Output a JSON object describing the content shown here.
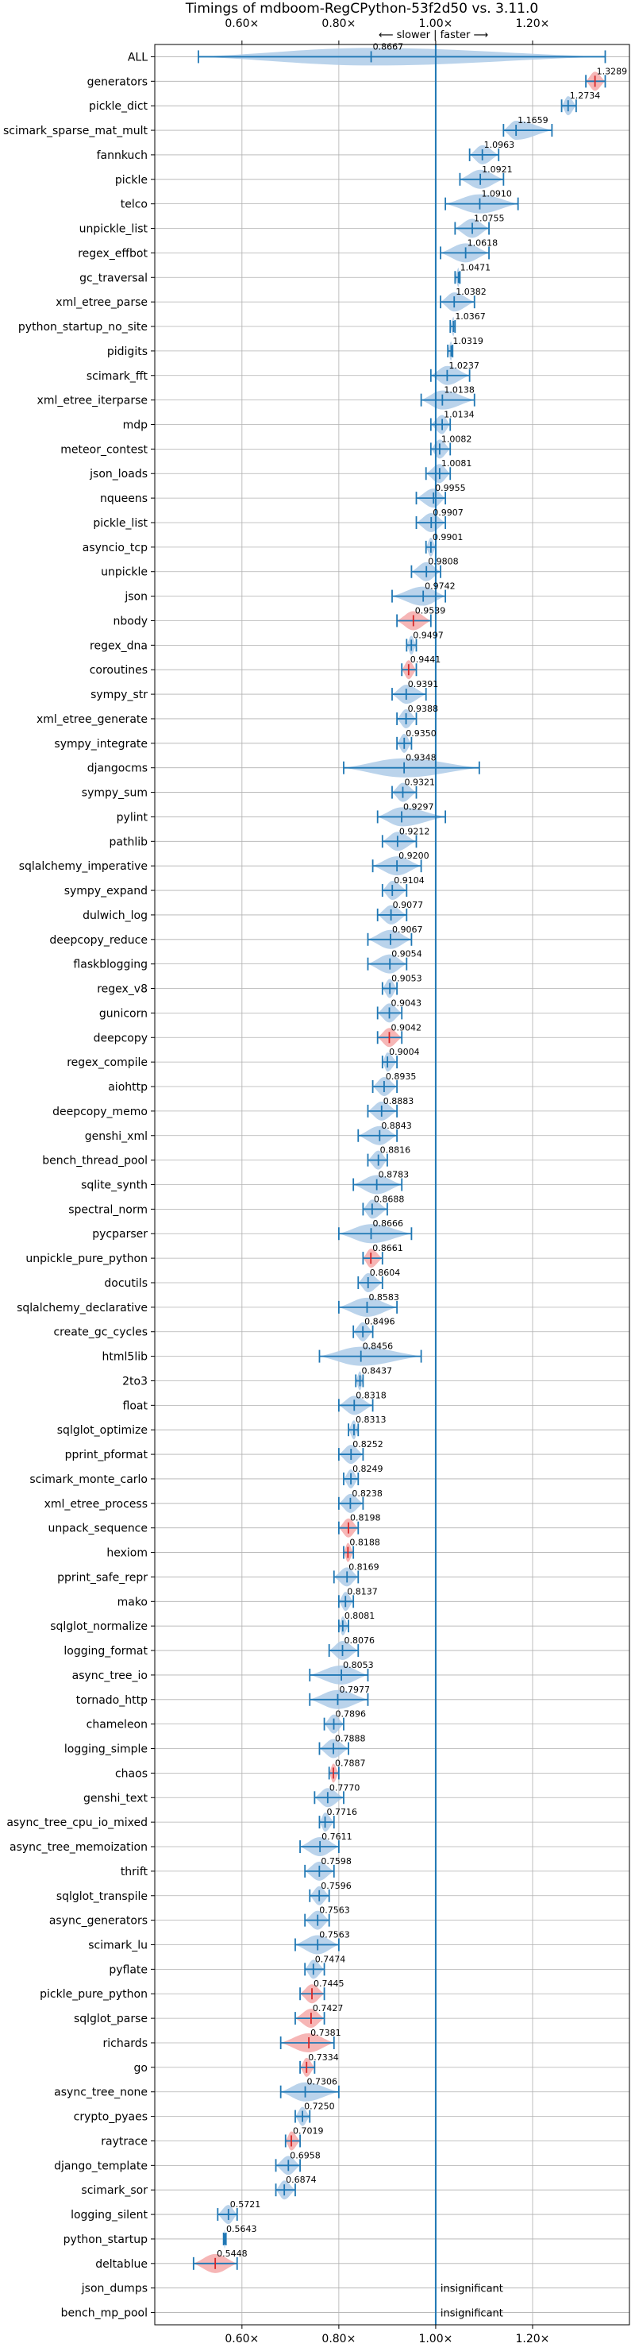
{
  "chart_data": {
    "type": "violin",
    "title": "Timings of mdboom-RegCPython-53f2d50 vs. 3.11.0",
    "direction_note": "⟵ slower | faster ⟶",
    "x_ticks": [
      {
        "value": 0.6,
        "label": "0.60×"
      },
      {
        "value": 0.8,
        "label": "0.80×"
      },
      {
        "value": 1.0,
        "label": "1.00×"
      },
      {
        "value": 1.2,
        "label": "1.20×"
      }
    ],
    "xlim": [
      0.42,
      1.4
    ],
    "reference_line": 1.0,
    "colors": {
      "faster": "#1f77b4",
      "violin_blue": "#aecbe8",
      "violin_red": "#f4a9a9",
      "slower_marker": "#d62728",
      "grid": "#b0b0b0"
    },
    "benchmarks": [
      {
        "name": "ALL",
        "value": 0.8667,
        "label": "0.8667",
        "lo": 0.51,
        "hi": 1.35,
        "color": "blue",
        "wide": true
      },
      {
        "name": "generators",
        "value": 1.3289,
        "label": "1.3289",
        "lo": 1.31,
        "hi": 1.35,
        "color": "red"
      },
      {
        "name": "pickle_dict",
        "value": 1.2734,
        "label": "1.2734",
        "lo": 1.26,
        "hi": 1.29,
        "color": "blue"
      },
      {
        "name": "scimark_sparse_mat_mult",
        "value": 1.1659,
        "label": "1.1659",
        "lo": 1.14,
        "hi": 1.24,
        "color": "blue"
      },
      {
        "name": "fannkuch",
        "value": 1.0963,
        "label": "1.0963",
        "lo": 1.07,
        "hi": 1.13,
        "color": "blue"
      },
      {
        "name": "pickle",
        "value": 1.0921,
        "label": "1.0921",
        "lo": 1.05,
        "hi": 1.14,
        "color": "blue"
      },
      {
        "name": "telco",
        "value": 1.091,
        "label": "1.0910",
        "lo": 1.02,
        "hi": 1.17,
        "color": "blue"
      },
      {
        "name": "unpickle_list",
        "value": 1.0755,
        "label": "1.0755",
        "lo": 1.04,
        "hi": 1.11,
        "color": "blue"
      },
      {
        "name": "regex_effbot",
        "value": 1.0618,
        "label": "1.0618",
        "lo": 1.01,
        "hi": 1.11,
        "color": "blue"
      },
      {
        "name": "gc_traversal",
        "value": 1.0471,
        "label": "1.0471",
        "lo": 1.04,
        "hi": 1.05,
        "color": "blue"
      },
      {
        "name": "xml_etree_parse",
        "value": 1.0382,
        "label": "1.0382",
        "lo": 1.01,
        "hi": 1.08,
        "color": "blue"
      },
      {
        "name": "python_startup_no_site",
        "value": 1.0367,
        "label": "1.0367",
        "lo": 1.03,
        "hi": 1.04,
        "color": "blue"
      },
      {
        "name": "pidigits",
        "value": 1.0319,
        "label": "1.0319",
        "lo": 1.025,
        "hi": 1.035,
        "color": "blue"
      },
      {
        "name": "scimark_fft",
        "value": 1.0237,
        "label": "1.0237",
        "lo": 0.99,
        "hi": 1.07,
        "color": "blue"
      },
      {
        "name": "xml_etree_iterparse",
        "value": 1.0138,
        "label": "1.0138",
        "lo": 0.97,
        "hi": 1.08,
        "color": "blue"
      },
      {
        "name": "mdp",
        "value": 1.0134,
        "label": "1.0134",
        "lo": 0.99,
        "hi": 1.03,
        "color": "blue"
      },
      {
        "name": "meteor_contest",
        "value": 1.0082,
        "label": "1.0082",
        "lo": 0.99,
        "hi": 1.03,
        "color": "blue"
      },
      {
        "name": "json_loads",
        "value": 1.0081,
        "label": "1.0081",
        "lo": 0.98,
        "hi": 1.03,
        "color": "blue"
      },
      {
        "name": "nqueens",
        "value": 0.9955,
        "label": "0.9955",
        "lo": 0.96,
        "hi": 1.02,
        "color": "blue"
      },
      {
        "name": "pickle_list",
        "value": 0.9907,
        "label": "0.9907",
        "lo": 0.96,
        "hi": 1.02,
        "color": "blue"
      },
      {
        "name": "asyncio_tcp",
        "value": 0.9901,
        "label": "0.9901",
        "lo": 0.98,
        "hi": 1.0,
        "color": "blue"
      },
      {
        "name": "unpickle",
        "value": 0.9808,
        "label": "0.9808",
        "lo": 0.95,
        "hi": 1.01,
        "color": "blue"
      },
      {
        "name": "json",
        "value": 0.9742,
        "label": "0.9742",
        "lo": 0.91,
        "hi": 1.02,
        "color": "blue"
      },
      {
        "name": "nbody",
        "value": 0.9539,
        "label": "0.9539",
        "lo": 0.92,
        "hi": 0.99,
        "color": "red"
      },
      {
        "name": "regex_dna",
        "value": 0.9497,
        "label": "0.9497",
        "lo": 0.94,
        "hi": 0.96,
        "color": "blue"
      },
      {
        "name": "coroutines",
        "value": 0.9441,
        "label": "0.9441",
        "lo": 0.93,
        "hi": 0.96,
        "color": "red"
      },
      {
        "name": "sympy_str",
        "value": 0.9391,
        "label": "0.9391",
        "lo": 0.91,
        "hi": 0.98,
        "color": "blue"
      },
      {
        "name": "xml_etree_generate",
        "value": 0.9388,
        "label": "0.9388",
        "lo": 0.92,
        "hi": 0.96,
        "color": "blue"
      },
      {
        "name": "sympy_integrate",
        "value": 0.935,
        "label": "0.9350",
        "lo": 0.92,
        "hi": 0.95,
        "color": "blue"
      },
      {
        "name": "djangocms",
        "value": 0.9348,
        "label": "0.9348",
        "lo": 0.81,
        "hi": 1.09,
        "color": "blue"
      },
      {
        "name": "sympy_sum",
        "value": 0.9321,
        "label": "0.9321",
        "lo": 0.91,
        "hi": 0.96,
        "color": "blue"
      },
      {
        "name": "pylint",
        "value": 0.9297,
        "label": "0.9297",
        "lo": 0.88,
        "hi": 1.02,
        "color": "blue"
      },
      {
        "name": "pathlib",
        "value": 0.9212,
        "label": "0.9212",
        "lo": 0.89,
        "hi": 0.96,
        "color": "blue"
      },
      {
        "name": "sqlalchemy_imperative",
        "value": 0.92,
        "label": "0.9200",
        "lo": 0.87,
        "hi": 0.97,
        "color": "blue"
      },
      {
        "name": "sympy_expand",
        "value": 0.9104,
        "label": "0.9104",
        "lo": 0.89,
        "hi": 0.94,
        "color": "blue"
      },
      {
        "name": "dulwich_log",
        "value": 0.9077,
        "label": "0.9077",
        "lo": 0.88,
        "hi": 0.94,
        "color": "blue"
      },
      {
        "name": "deepcopy_reduce",
        "value": 0.9067,
        "label": "0.9067",
        "lo": 0.86,
        "hi": 0.95,
        "color": "blue"
      },
      {
        "name": "flaskblogging",
        "value": 0.9054,
        "label": "0.9054",
        "lo": 0.86,
        "hi": 0.94,
        "color": "blue"
      },
      {
        "name": "regex_v8",
        "value": 0.9053,
        "label": "0.9053",
        "lo": 0.89,
        "hi": 0.92,
        "color": "blue"
      },
      {
        "name": "gunicorn",
        "value": 0.9043,
        "label": "0.9043",
        "lo": 0.88,
        "hi": 0.93,
        "color": "blue"
      },
      {
        "name": "deepcopy",
        "value": 0.9042,
        "label": "0.9042",
        "lo": 0.88,
        "hi": 0.93,
        "color": "red"
      },
      {
        "name": "regex_compile",
        "value": 0.9004,
        "label": "0.9004",
        "lo": 0.89,
        "hi": 0.92,
        "color": "blue"
      },
      {
        "name": "aiohttp",
        "value": 0.8935,
        "label": "0.8935",
        "lo": 0.87,
        "hi": 0.92,
        "color": "blue"
      },
      {
        "name": "deepcopy_memo",
        "value": 0.8883,
        "label": "0.8883",
        "lo": 0.86,
        "hi": 0.92,
        "color": "blue"
      },
      {
        "name": "genshi_xml",
        "value": 0.8843,
        "label": "0.8843",
        "lo": 0.84,
        "hi": 0.92,
        "color": "blue"
      },
      {
        "name": "bench_thread_pool",
        "value": 0.8816,
        "label": "0.8816",
        "lo": 0.86,
        "hi": 0.9,
        "color": "blue"
      },
      {
        "name": "sqlite_synth",
        "value": 0.8783,
        "label": "0.8783",
        "lo": 0.83,
        "hi": 0.93,
        "color": "blue"
      },
      {
        "name": "spectral_norm",
        "value": 0.8688,
        "label": "0.8688",
        "lo": 0.85,
        "hi": 0.9,
        "color": "blue"
      },
      {
        "name": "pycparser",
        "value": 0.8666,
        "label": "0.8666",
        "lo": 0.8,
        "hi": 0.95,
        "color": "blue"
      },
      {
        "name": "unpickle_pure_python",
        "value": 0.8661,
        "label": "0.8661",
        "lo": 0.85,
        "hi": 0.89,
        "color": "red"
      },
      {
        "name": "docutils",
        "value": 0.8604,
        "label": "0.8604",
        "lo": 0.84,
        "hi": 0.89,
        "color": "blue"
      },
      {
        "name": "sqlalchemy_declarative",
        "value": 0.8583,
        "label": "0.8583",
        "lo": 0.8,
        "hi": 0.92,
        "color": "blue"
      },
      {
        "name": "create_gc_cycles",
        "value": 0.8496,
        "label": "0.8496",
        "lo": 0.83,
        "hi": 0.87,
        "color": "blue"
      },
      {
        "name": "html5lib",
        "value": 0.8456,
        "label": "0.8456",
        "lo": 0.76,
        "hi": 0.97,
        "color": "blue"
      },
      {
        "name": "2to3",
        "value": 0.8437,
        "label": "0.8437",
        "lo": 0.835,
        "hi": 0.85,
        "color": "blue"
      },
      {
        "name": "float",
        "value": 0.8318,
        "label": "0.8318",
        "lo": 0.8,
        "hi": 0.87,
        "color": "blue"
      },
      {
        "name": "sqlglot_optimize",
        "value": 0.8313,
        "label": "0.8313",
        "lo": 0.82,
        "hi": 0.84,
        "color": "blue"
      },
      {
        "name": "pprint_pformat",
        "value": 0.8252,
        "label": "0.8252",
        "lo": 0.8,
        "hi": 0.85,
        "color": "blue"
      },
      {
        "name": "scimark_monte_carlo",
        "value": 0.8249,
        "label": "0.8249",
        "lo": 0.81,
        "hi": 0.84,
        "color": "blue"
      },
      {
        "name": "xml_etree_process",
        "value": 0.8238,
        "label": "0.8238",
        "lo": 0.8,
        "hi": 0.85,
        "color": "blue"
      },
      {
        "name": "unpack_sequence",
        "value": 0.8198,
        "label": "0.8198",
        "lo": 0.8,
        "hi": 0.84,
        "color": "red"
      },
      {
        "name": "hexiom",
        "value": 0.8188,
        "label": "0.8188",
        "lo": 0.81,
        "hi": 0.83,
        "color": "red"
      },
      {
        "name": "pprint_safe_repr",
        "value": 0.8169,
        "label": "0.8169",
        "lo": 0.79,
        "hi": 0.84,
        "color": "blue"
      },
      {
        "name": "mako",
        "value": 0.8137,
        "label": "0.8137",
        "lo": 0.8,
        "hi": 0.83,
        "color": "blue"
      },
      {
        "name": "sqlglot_normalize",
        "value": 0.8081,
        "label": "0.8081",
        "lo": 0.8,
        "hi": 0.82,
        "color": "blue"
      },
      {
        "name": "logging_format",
        "value": 0.8076,
        "label": "0.8076",
        "lo": 0.78,
        "hi": 0.84,
        "color": "blue"
      },
      {
        "name": "async_tree_io",
        "value": 0.8053,
        "label": "0.8053",
        "lo": 0.74,
        "hi": 0.86,
        "color": "blue"
      },
      {
        "name": "tornado_http",
        "value": 0.7977,
        "label": "0.7977",
        "lo": 0.74,
        "hi": 0.86,
        "color": "blue"
      },
      {
        "name": "chameleon",
        "value": 0.7896,
        "label": "0.7896",
        "lo": 0.77,
        "hi": 0.81,
        "color": "blue"
      },
      {
        "name": "logging_simple",
        "value": 0.7888,
        "label": "0.7888",
        "lo": 0.76,
        "hi": 0.82,
        "color": "blue"
      },
      {
        "name": "chaos",
        "value": 0.7887,
        "label": "0.7887",
        "lo": 0.78,
        "hi": 0.8,
        "color": "red"
      },
      {
        "name": "genshi_text",
        "value": 0.777,
        "label": "0.7770",
        "lo": 0.75,
        "hi": 0.81,
        "color": "blue"
      },
      {
        "name": "async_tree_cpu_io_mixed",
        "value": 0.7716,
        "label": "0.7716",
        "lo": 0.76,
        "hi": 0.79,
        "color": "blue"
      },
      {
        "name": "async_tree_memoization",
        "value": 0.7611,
        "label": "0.7611",
        "lo": 0.72,
        "hi": 0.8,
        "color": "blue"
      },
      {
        "name": "thrift",
        "value": 0.7598,
        "label": "0.7598",
        "lo": 0.73,
        "hi": 0.79,
        "color": "blue"
      },
      {
        "name": "sqlglot_transpile",
        "value": 0.7596,
        "label": "0.7596",
        "lo": 0.74,
        "hi": 0.78,
        "color": "blue"
      },
      {
        "name": "async_generators",
        "value": 0.7563,
        "label": "0.7563",
        "lo": 0.73,
        "hi": 0.78,
        "color": "blue"
      },
      {
        "name": "scimark_lu",
        "value": 0.7563,
        "label": "0.7563",
        "lo": 0.71,
        "hi": 0.8,
        "color": "blue"
      },
      {
        "name": "pyflate",
        "value": 0.7474,
        "label": "0.7474",
        "lo": 0.73,
        "hi": 0.77,
        "color": "blue"
      },
      {
        "name": "pickle_pure_python",
        "value": 0.7445,
        "label": "0.7445",
        "lo": 0.72,
        "hi": 0.77,
        "color": "red"
      },
      {
        "name": "sqlglot_parse",
        "value": 0.7427,
        "label": "0.7427",
        "lo": 0.71,
        "hi": 0.77,
        "color": "red"
      },
      {
        "name": "richards",
        "value": 0.7381,
        "label": "0.7381",
        "lo": 0.68,
        "hi": 0.79,
        "color": "red"
      },
      {
        "name": "go",
        "value": 0.7334,
        "label": "0.7334",
        "lo": 0.72,
        "hi": 0.75,
        "color": "red"
      },
      {
        "name": "async_tree_none",
        "value": 0.7306,
        "label": "0.7306",
        "lo": 0.68,
        "hi": 0.8,
        "color": "blue"
      },
      {
        "name": "crypto_pyaes",
        "value": 0.725,
        "label": "0.7250",
        "lo": 0.71,
        "hi": 0.74,
        "color": "blue"
      },
      {
        "name": "raytrace",
        "value": 0.7019,
        "label": "0.7019",
        "lo": 0.69,
        "hi": 0.72,
        "color": "red"
      },
      {
        "name": "django_template",
        "value": 0.6958,
        "label": "0.6958",
        "lo": 0.67,
        "hi": 0.72,
        "color": "blue"
      },
      {
        "name": "scimark_sor",
        "value": 0.6874,
        "label": "0.6874",
        "lo": 0.67,
        "hi": 0.71,
        "color": "blue"
      },
      {
        "name": "logging_silent",
        "value": 0.5721,
        "label": "0.5721",
        "lo": 0.55,
        "hi": 0.59,
        "color": "blue"
      },
      {
        "name": "python_startup",
        "value": 0.5643,
        "label": "0.5643",
        "lo": 0.562,
        "hi": 0.567,
        "color": "blue"
      },
      {
        "name": "deltablue",
        "value": 0.5448,
        "label": "0.5448",
        "lo": 0.5,
        "hi": 0.59,
        "color": "red"
      },
      {
        "name": "json_dumps",
        "value": null,
        "label": "insignificant"
      },
      {
        "name": "bench_mp_pool",
        "value": null,
        "label": "insignificant"
      }
    ]
  }
}
